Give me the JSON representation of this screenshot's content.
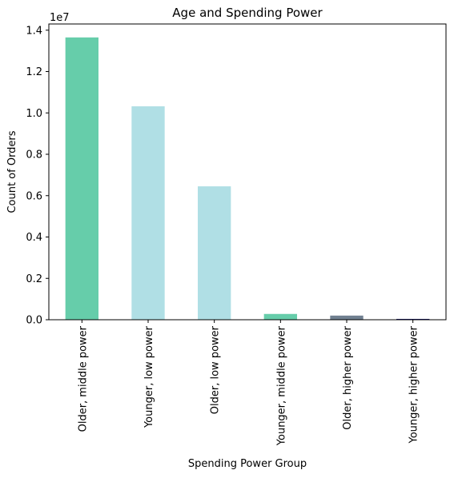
{
  "chart_data": {
    "type": "bar",
    "title": "Age and Spending Power",
    "xlabel": "Spending Power Group",
    "ylabel": "Count of Orders",
    "offset_label": "1e7",
    "categories": [
      "Older, middle power",
      "Younger, low power",
      "Older, low power",
      "Younger, middle power",
      "Older, higher power",
      "Younger, higher power"
    ],
    "values": [
      13650000,
      10320000,
      6450000,
      280000,
      200000,
      40000
    ],
    "colors": [
      "#66cdaa",
      "#b0dfe5",
      "#b0dfe5",
      "#66cdaa",
      "#708090",
      "#191970"
    ],
    "ylim": [
      0,
      14300000
    ],
    "yticks": [
      0,
      2000000,
      4000000,
      6000000,
      8000000,
      10000000,
      12000000,
      14000000
    ],
    "ytick_labels": [
      "0.0",
      "0.2",
      "0.4",
      "0.6",
      "0.8",
      "1.0",
      "1.2",
      "1.4"
    ],
    "grid": false,
    "legend": "none"
  }
}
